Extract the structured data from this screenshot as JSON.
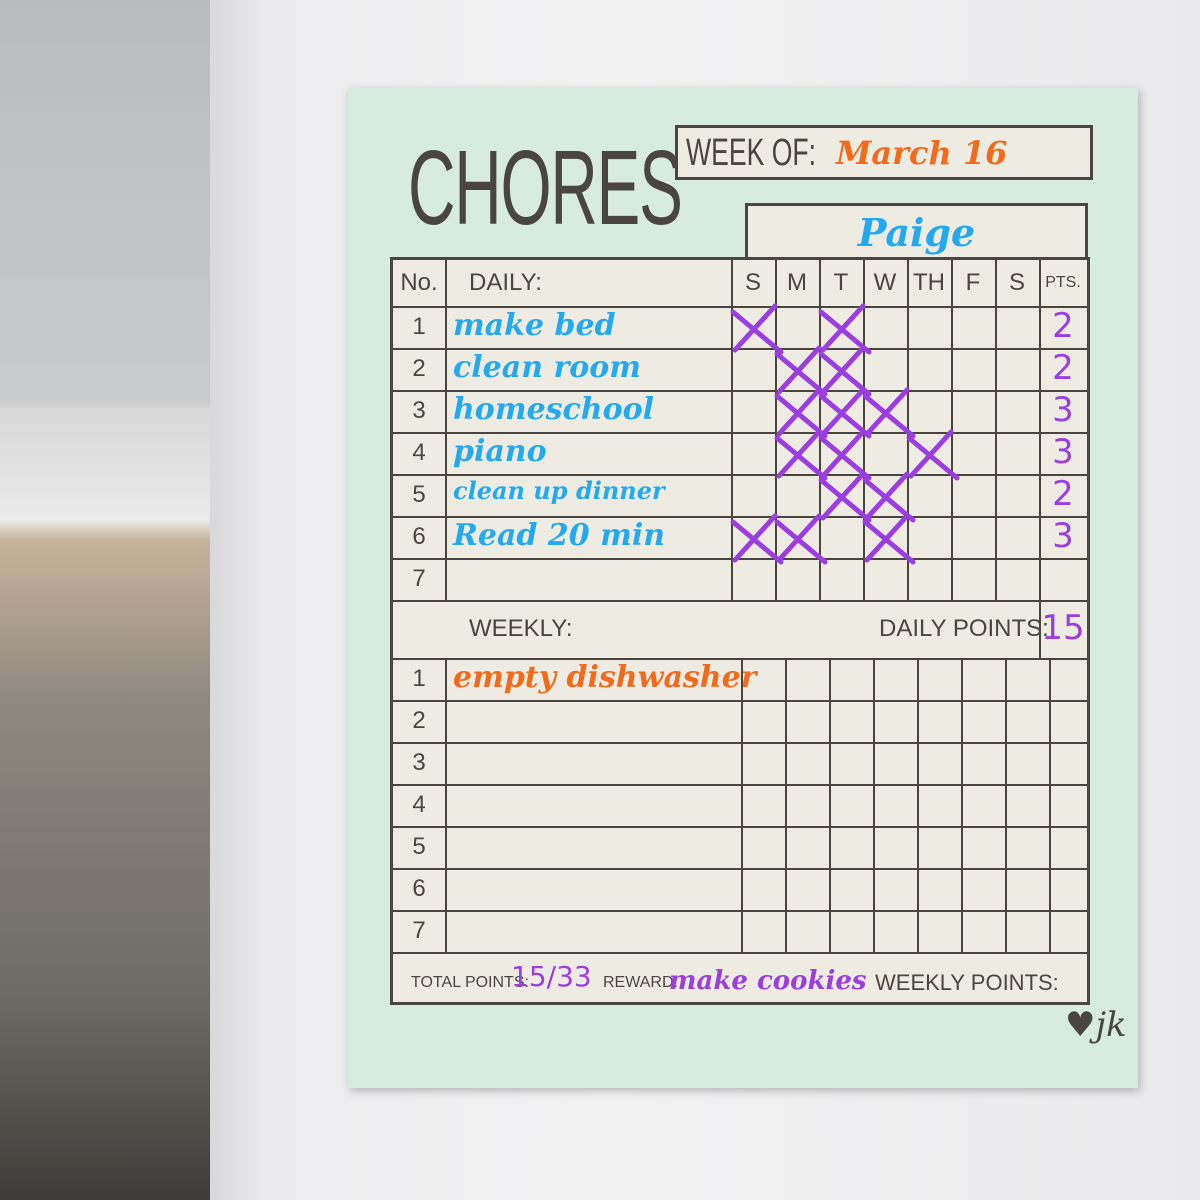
{
  "title": "CHORES",
  "week_of": {
    "label": "WEEK OF:",
    "value": "March 16"
  },
  "name": "Paige",
  "headers": {
    "no": "No.",
    "daily": "DAILY:",
    "days": [
      "S",
      "M",
      "T",
      "W",
      "TH",
      "F",
      "S"
    ],
    "pts": "PTS."
  },
  "daily": [
    {
      "no": "1",
      "task": "make bed",
      "checked": [
        "S",
        "T"
      ],
      "pts": "2"
    },
    {
      "no": "2",
      "task": "clean room",
      "checked": [
        "M",
        "T"
      ],
      "pts": "2"
    },
    {
      "no": "3",
      "task": "homeschool",
      "checked": [
        "M",
        "T",
        "W"
      ],
      "pts": "3"
    },
    {
      "no": "4",
      "task": "piano",
      "checked": [
        "M",
        "T",
        "TH"
      ],
      "pts": "3"
    },
    {
      "no": "5",
      "task": "clean up dinner",
      "checked": [
        "T",
        "W"
      ],
      "pts": "2"
    },
    {
      "no": "6",
      "task": "Read 20 min",
      "checked": [
        "S",
        "M",
        "W"
      ],
      "pts": "3"
    },
    {
      "no": "7",
      "task": "",
      "checked": [],
      "pts": ""
    }
  ],
  "weekly_label": "WEEKLY:",
  "daily_points": {
    "label": "DAILY POINTS:",
    "value": "15"
  },
  "weekly": [
    {
      "no": "1",
      "task": "empty dishwasher"
    },
    {
      "no": "2",
      "task": ""
    },
    {
      "no": "3",
      "task": ""
    },
    {
      "no": "4",
      "task": ""
    },
    {
      "no": "5",
      "task": ""
    },
    {
      "no": "6",
      "task": ""
    },
    {
      "no": "7",
      "task": ""
    }
  ],
  "footer": {
    "total_label": "TOTAL POINTS:",
    "total_value": "15/33",
    "reward_label": "REWARD:",
    "reward_value": "make cookies",
    "weekly_label": "WEEKLY POINTS:"
  },
  "colors": {
    "blue": "#24a9ef",
    "orange": "#f26a1b",
    "purple": "#9b3ee0",
    "ink": "#4a4541",
    "board": "#d7ecdf"
  }
}
